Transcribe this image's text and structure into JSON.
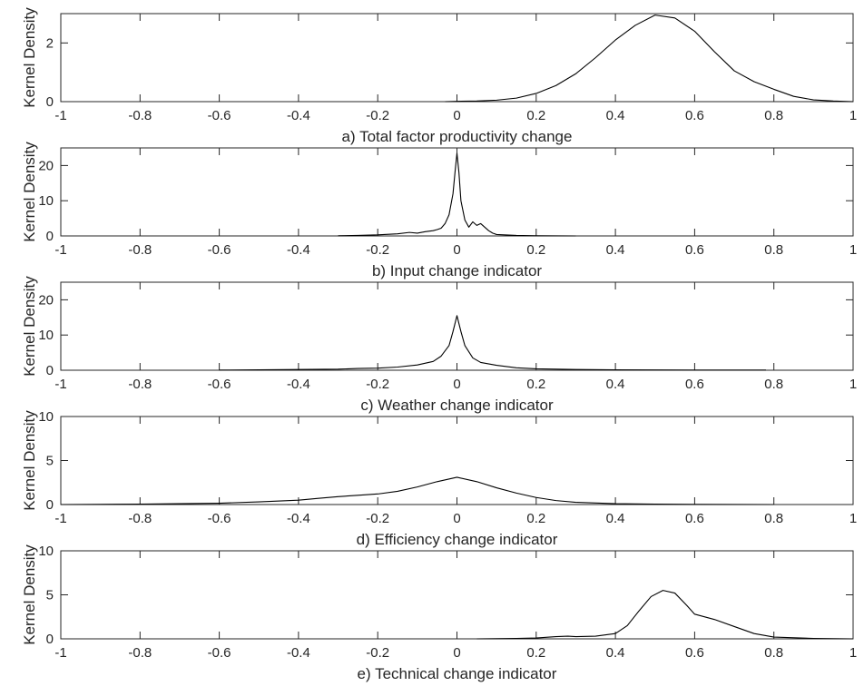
{
  "chart_data": [
    {
      "type": "line",
      "caption": "a) Total factor productivity change",
      "ylabel": "Kernel Density",
      "xlim": [
        -1,
        1
      ],
      "ylim": [
        0,
        3
      ],
      "xticks": [
        "-1",
        "-0.8",
        "-0.6",
        "-0.4",
        "-0.2",
        "0",
        "0.2",
        "0.4",
        "0.6",
        "0.8",
        "1"
      ],
      "yticks": [
        "0",
        "2"
      ],
      "ytick_values": [
        0,
        2
      ],
      "series": [
        {
          "x": [
            -0.03,
            0.0,
            0.05,
            0.1,
            0.15,
            0.2,
            0.25,
            0.3,
            0.35,
            0.4,
            0.45,
            0.5,
            0.55,
            0.6,
            0.65,
            0.7,
            0.75,
            0.8,
            0.85,
            0.9,
            0.95,
            1.0
          ],
          "y": [
            0.0,
            0.01,
            0.02,
            0.05,
            0.12,
            0.28,
            0.55,
            0.95,
            1.5,
            2.1,
            2.6,
            2.95,
            2.85,
            2.4,
            1.7,
            1.05,
            0.68,
            0.42,
            0.18,
            0.06,
            0.02,
            0.0
          ]
        }
      ]
    },
    {
      "type": "line",
      "caption": "b) Input change indicator",
      "ylabel": "Kernel Density",
      "xlim": [
        -1,
        1
      ],
      "ylim": [
        0,
        25
      ],
      "xticks": [
        "-1",
        "-0.8",
        "-0.6",
        "-0.4",
        "-0.2",
        "0",
        "0.2",
        "0.4",
        "0.6",
        "0.8",
        "1"
      ],
      "yticks": [
        "0",
        "10",
        "20"
      ],
      "ytick_values": [
        0,
        10,
        20
      ],
      "series": [
        {
          "x": [
            -0.3,
            -0.25,
            -0.2,
            -0.15,
            -0.12,
            -0.1,
            -0.08,
            -0.06,
            -0.05,
            -0.04,
            -0.03,
            -0.02,
            -0.01,
            -0.005,
            0.0,
            0.005,
            0.01,
            0.02,
            0.03,
            0.04,
            0.05,
            0.06,
            0.07,
            0.08,
            0.09,
            0.1,
            0.15,
            0.2,
            0.3
          ],
          "y": [
            0.05,
            0.15,
            0.3,
            0.6,
            1.0,
            0.8,
            1.2,
            1.5,
            1.8,
            2.2,
            3.5,
            6.0,
            12.0,
            18.0,
            23.5,
            18.0,
            10.0,
            4.5,
            2.5,
            4.0,
            3.0,
            3.5,
            2.5,
            1.5,
            0.8,
            0.4,
            0.15,
            0.05,
            0.0
          ]
        }
      ]
    },
    {
      "type": "line",
      "caption": "c) Weather change indicator",
      "ylabel": "Kernel Density",
      "xlim": [
        -1,
        1
      ],
      "ylim": [
        0,
        25
      ],
      "xticks": [
        "-1",
        "-0.8",
        "-0.6",
        "-0.4",
        "-0.2",
        "0",
        "0.2",
        "0.4",
        "0.6",
        "0.8",
        "1"
      ],
      "yticks": [
        "0",
        "10",
        "20"
      ],
      "ytick_values": [
        0,
        10,
        20
      ],
      "series": [
        {
          "x": [
            -0.6,
            -0.5,
            -0.4,
            -0.3,
            -0.25,
            -0.2,
            -0.15,
            -0.1,
            -0.06,
            -0.04,
            -0.02,
            -0.01,
            0.0,
            0.01,
            0.02,
            0.04,
            0.06,
            0.1,
            0.15,
            0.2,
            0.3,
            0.4,
            0.5,
            0.6,
            0.7,
            0.78
          ],
          "y": [
            0.05,
            0.1,
            0.2,
            0.3,
            0.5,
            0.6,
            0.9,
            1.5,
            2.5,
            4.0,
            7.0,
            11.0,
            15.5,
            11.0,
            7.0,
            3.5,
            2.2,
            1.4,
            0.7,
            0.4,
            0.2,
            0.1,
            0.08,
            0.05,
            0.05,
            0.05
          ]
        }
      ]
    },
    {
      "type": "line",
      "caption": "d) Efficiency change indicator",
      "ylabel": "Kernel Density",
      "xlim": [
        -1,
        1
      ],
      "ylim": [
        0,
        10
      ],
      "xticks": [
        "-1",
        "-0.8",
        "-0.6",
        "-0.4",
        "-0.2",
        "0",
        "0.2",
        "0.4",
        "0.6",
        "0.8",
        "1"
      ],
      "yticks": [
        "0",
        "5",
        "10"
      ],
      "ytick_values": [
        0,
        5,
        10
      ],
      "series": [
        {
          "x": [
            -1.0,
            -0.9,
            -0.8,
            -0.7,
            -0.6,
            -0.5,
            -0.4,
            -0.35,
            -0.3,
            -0.25,
            -0.2,
            -0.15,
            -0.1,
            -0.05,
            0.0,
            0.05,
            0.1,
            0.15,
            0.2,
            0.25,
            0.3,
            0.4,
            0.5,
            0.6,
            0.7,
            0.8
          ],
          "y": [
            0.0,
            0.02,
            0.05,
            0.1,
            0.15,
            0.3,
            0.5,
            0.7,
            0.9,
            1.05,
            1.2,
            1.5,
            2.0,
            2.6,
            3.1,
            2.6,
            1.9,
            1.3,
            0.8,
            0.45,
            0.25,
            0.1,
            0.05,
            0.02,
            0.01,
            0.0
          ]
        }
      ]
    },
    {
      "type": "line",
      "caption": "e) Technical change indicator",
      "ylabel": "Kernel Density",
      "xlim": [
        -1,
        1
      ],
      "ylim": [
        0,
        10
      ],
      "xticks": [
        "-1",
        "-0.8",
        "-0.6",
        "-0.4",
        "-0.2",
        "0",
        "0.2",
        "0.4",
        "0.6",
        "0.8",
        "1"
      ],
      "yticks": [
        "0",
        "5",
        "10"
      ],
      "ytick_values": [
        0,
        5,
        10
      ],
      "series": [
        {
          "x": [
            0.05,
            0.1,
            0.15,
            0.2,
            0.25,
            0.28,
            0.3,
            0.35,
            0.4,
            0.43,
            0.46,
            0.49,
            0.52,
            0.55,
            0.58,
            0.6,
            0.65,
            0.7,
            0.75,
            0.8,
            0.9,
            1.0
          ],
          "y": [
            0.0,
            0.02,
            0.05,
            0.1,
            0.25,
            0.3,
            0.25,
            0.3,
            0.6,
            1.5,
            3.2,
            4.8,
            5.5,
            5.2,
            3.8,
            2.8,
            2.2,
            1.4,
            0.6,
            0.2,
            0.05,
            0.0
          ]
        }
      ]
    }
  ]
}
